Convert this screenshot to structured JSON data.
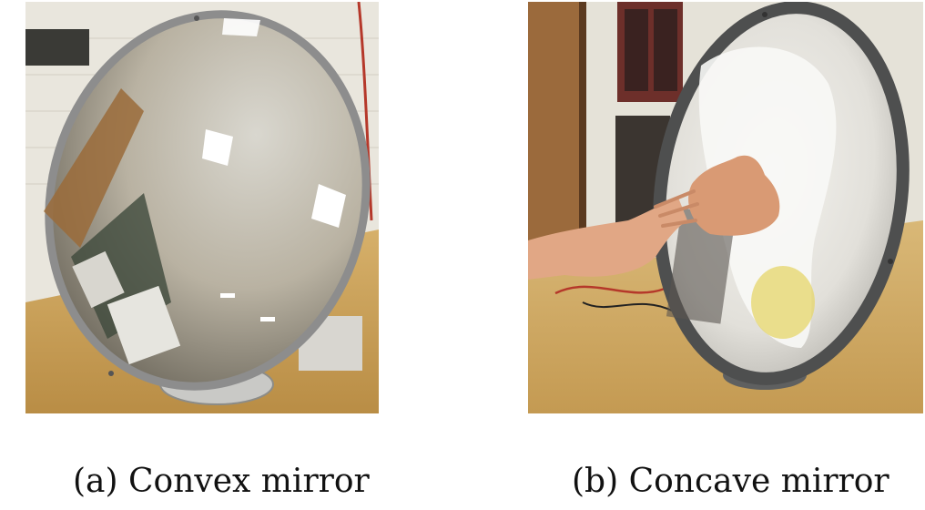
{
  "figure": {
    "panels": [
      {
        "label": "(a)",
        "caption": "(a) Convex mirror"
      },
      {
        "label": "(b)",
        "caption": "(b) Concave mirror"
      }
    ]
  }
}
